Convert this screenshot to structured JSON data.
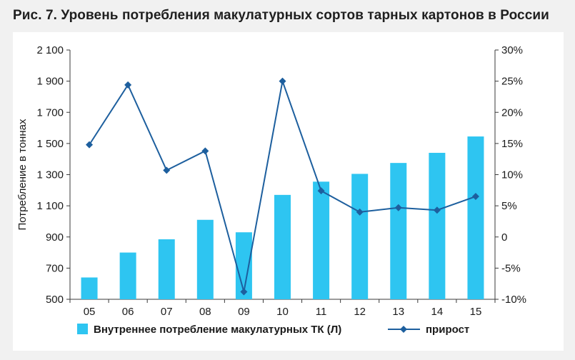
{
  "title": "Рис. 7. Уровень потребления макулатурных сортов тарных картонов в России",
  "chart_data": {
    "type": "bar",
    "categories": [
      "05",
      "06",
      "07",
      "08",
      "09",
      "10",
      "11",
      "12",
      "13",
      "14",
      "15"
    ],
    "ylabel": "Потребление в тоннах",
    "ylim": [
      500,
      2100
    ],
    "yticks": [
      "500",
      "700",
      "900",
      "1 100",
      "1 300",
      "1 500",
      "1 700",
      "1 900",
      "2 100"
    ],
    "y2lim": [
      -10,
      30
    ],
    "y2ticks": [
      "-10%",
      "-5%",
      "0",
      "5%",
      "10%",
      "15%",
      "20%",
      "25%",
      "30%"
    ],
    "series": [
      {
        "name": "Внутреннее потребление макулатурных ТК (Л)",
        "type": "bar",
        "axis": "left",
        "color": "#2ec5f1",
        "values": [
          640,
          800,
          885,
          1010,
          930,
          1170,
          1255,
          1305,
          1375,
          1440,
          1545
        ]
      },
      {
        "name": "прирост",
        "type": "line",
        "axis": "right",
        "color": "#1d5f9e",
        "values": [
          14.8,
          24.4,
          10.7,
          13.8,
          -8.8,
          25.0,
          7.4,
          4.0,
          4.7,
          4.3,
          6.5
        ]
      }
    ],
    "grid": false,
    "legend": "bottom"
  }
}
